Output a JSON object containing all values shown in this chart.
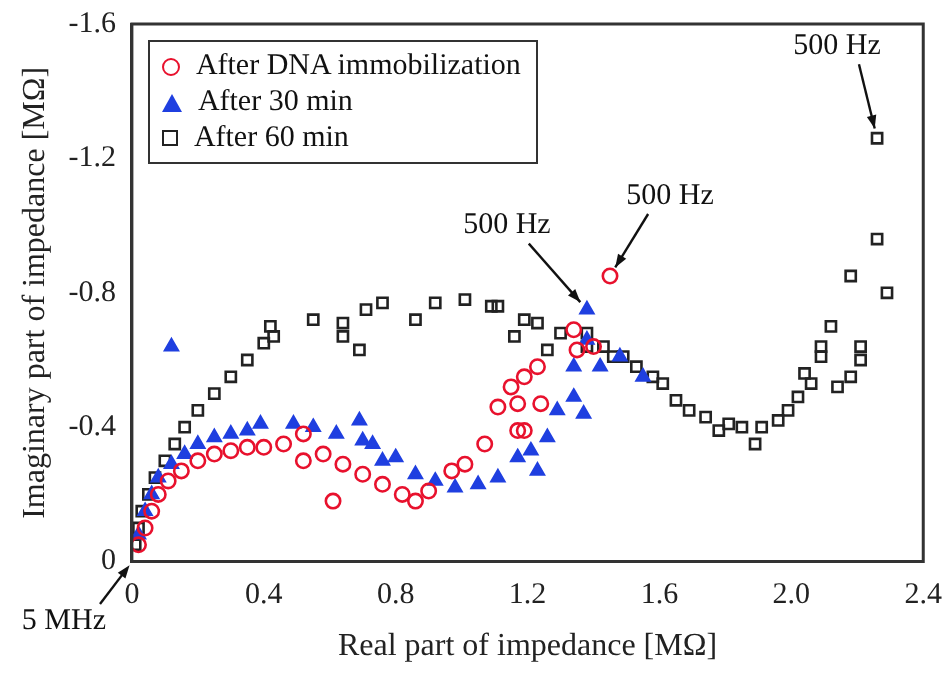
{
  "chart_data": {
    "type": "scatter",
    "xlabel": "Real part of impedance [MΩ]",
    "ylabel": "Imaginary part of impedance [MΩ]",
    "xlim": [
      0,
      2.4
    ],
    "xticks": [
      0,
      0.4,
      0.8,
      1.2,
      1.6,
      {
        "value": 2,
        "label": "2.0"
      },
      2.4
    ],
    "ylim": [
      0,
      -1.6
    ],
    "yticks": [
      0,
      -0.4,
      -0.8,
      -1.2,
      -1.6
    ],
    "grid": false,
    "legend": "top left",
    "series": [
      {
        "name": "After DNA immobilization",
        "color": "#e8112d",
        "marker": "circle",
        "x": [
          0.02,
          0.04,
          0.06,
          0.08,
          0.11,
          0.15,
          0.2,
          0.25,
          0.3,
          0.35,
          0.4,
          0.46,
          0.52,
          0.52,
          0.58,
          0.61,
          0.64,
          0.7,
          0.76,
          0.82,
          0.86,
          0.9,
          0.97,
          1.01,
          1.07,
          1.11,
          1.15,
          1.17,
          1.19,
          1.23,
          1.17,
          1.24,
          1.19,
          1.34,
          1.35,
          1.4,
          1.45
        ],
        "values": [
          -0.05,
          -0.1,
          -0.15,
          -0.2,
          -0.24,
          -0.27,
          -0.3,
          -0.32,
          -0.33,
          -0.34,
          -0.34,
          -0.35,
          -0.38,
          -0.3,
          -0.32,
          -0.18,
          -0.29,
          -0.26,
          -0.23,
          -0.2,
          -0.18,
          -0.21,
          -0.27,
          -0.29,
          -0.35,
          -0.46,
          -0.52,
          -0.39,
          -0.55,
          -0.58,
          -0.47,
          -0.47,
          -0.39,
          -0.69,
          -0.63,
          -0.64,
          -0.85
        ]
      },
      {
        "name": "After 30 min",
        "color": "#1f3fe0",
        "marker": "triangle",
        "x": [
          0.02,
          0.04,
          0.06,
          0.08,
          0.12,
          0.16,
          0.2,
          0.25,
          0.3,
          0.35,
          0.12,
          0.39,
          0.49,
          0.55,
          0.62,
          0.69,
          0.7,
          0.73,
          0.76,
          0.8,
          0.86,
          0.92,
          0.98,
          1.05,
          1.11,
          1.17,
          1.23,
          1.21,
          1.26,
          1.29,
          1.34,
          1.34,
          1.37,
          1.38,
          1.42,
          1.48,
          1.55,
          1.38
        ],
        "values": [
          -0.08,
          -0.15,
          -0.2,
          -0.25,
          -0.29,
          -0.32,
          -0.35,
          -0.37,
          -0.38,
          -0.39,
          -0.64,
          -0.41,
          -0.41,
          -0.4,
          -0.38,
          -0.42,
          -0.36,
          -0.35,
          -0.3,
          -0.31,
          -0.26,
          -0.24,
          -0.22,
          -0.23,
          -0.25,
          -0.31,
          -0.27,
          -0.33,
          -0.37,
          -0.45,
          -0.49,
          -0.58,
          -0.44,
          -0.66,
          -0.58,
          -0.61,
          -0.55,
          -0.75
        ]
      },
      {
        "name": "After 60 min",
        "color": "#222222",
        "marker": "square",
        "x": [
          0.01,
          0.02,
          0.03,
          0.05,
          0.07,
          0.1,
          0.13,
          0.16,
          0.2,
          0.25,
          0.3,
          0.35,
          0.4,
          0.42,
          0.43,
          0.55,
          0.64,
          0.64,
          0.69,
          0.71,
          0.76,
          0.86,
          0.92,
          1.01,
          1.09,
          1.11,
          1.16,
          1.19,
          1.23,
          1.26,
          1.3,
          1.38,
          1.38,
          1.43,
          1.46,
          1.49,
          1.53,
          1.58,
          1.61,
          1.65,
          1.69,
          1.74,
          1.78,
          1.81,
          1.85,
          1.89,
          1.91,
          1.96,
          1.99,
          2.02,
          2.06,
          2.04,
          2.09,
          2.09,
          2.12,
          2.14,
          2.18,
          2.21,
          2.21,
          2.29,
          2.18,
          2.26,
          2.26
        ],
        "values": [
          -0.05,
          -0.1,
          -0.15,
          -0.2,
          -0.25,
          -0.3,
          -0.35,
          -0.4,
          -0.45,
          -0.5,
          -0.55,
          -0.6,
          -0.65,
          -0.7,
          -0.67,
          -0.72,
          -0.71,
          -0.67,
          -0.63,
          -0.75,
          -0.77,
          -0.72,
          -0.77,
          -0.78,
          -0.76,
          -0.76,
          -0.67,
          -0.72,
          -0.71,
          -0.63,
          -0.68,
          -0.68,
          -0.64,
          -0.64,
          -0.61,
          -0.61,
          -0.58,
          -0.55,
          -0.53,
          -0.48,
          -0.45,
          -0.43,
          -0.39,
          -0.41,
          -0.4,
          -0.35,
          -0.4,
          -0.42,
          -0.45,
          -0.49,
          -0.53,
          -0.56,
          -0.61,
          -0.64,
          -0.7,
          -0.52,
          -0.55,
          -0.6,
          -0.64,
          -0.8,
          -0.85,
          -0.96,
          -1.26
        ]
      }
    ],
    "annotations": [
      {
        "text": "500 Hz",
        "x": 2.26,
        "y": -1.26
      },
      {
        "text": "500 Hz",
        "x": 1.45,
        "y": -0.85
      },
      {
        "text": "500 Hz",
        "x": 1.38,
        "y": -0.75
      },
      "5 MHz"
    ]
  }
}
